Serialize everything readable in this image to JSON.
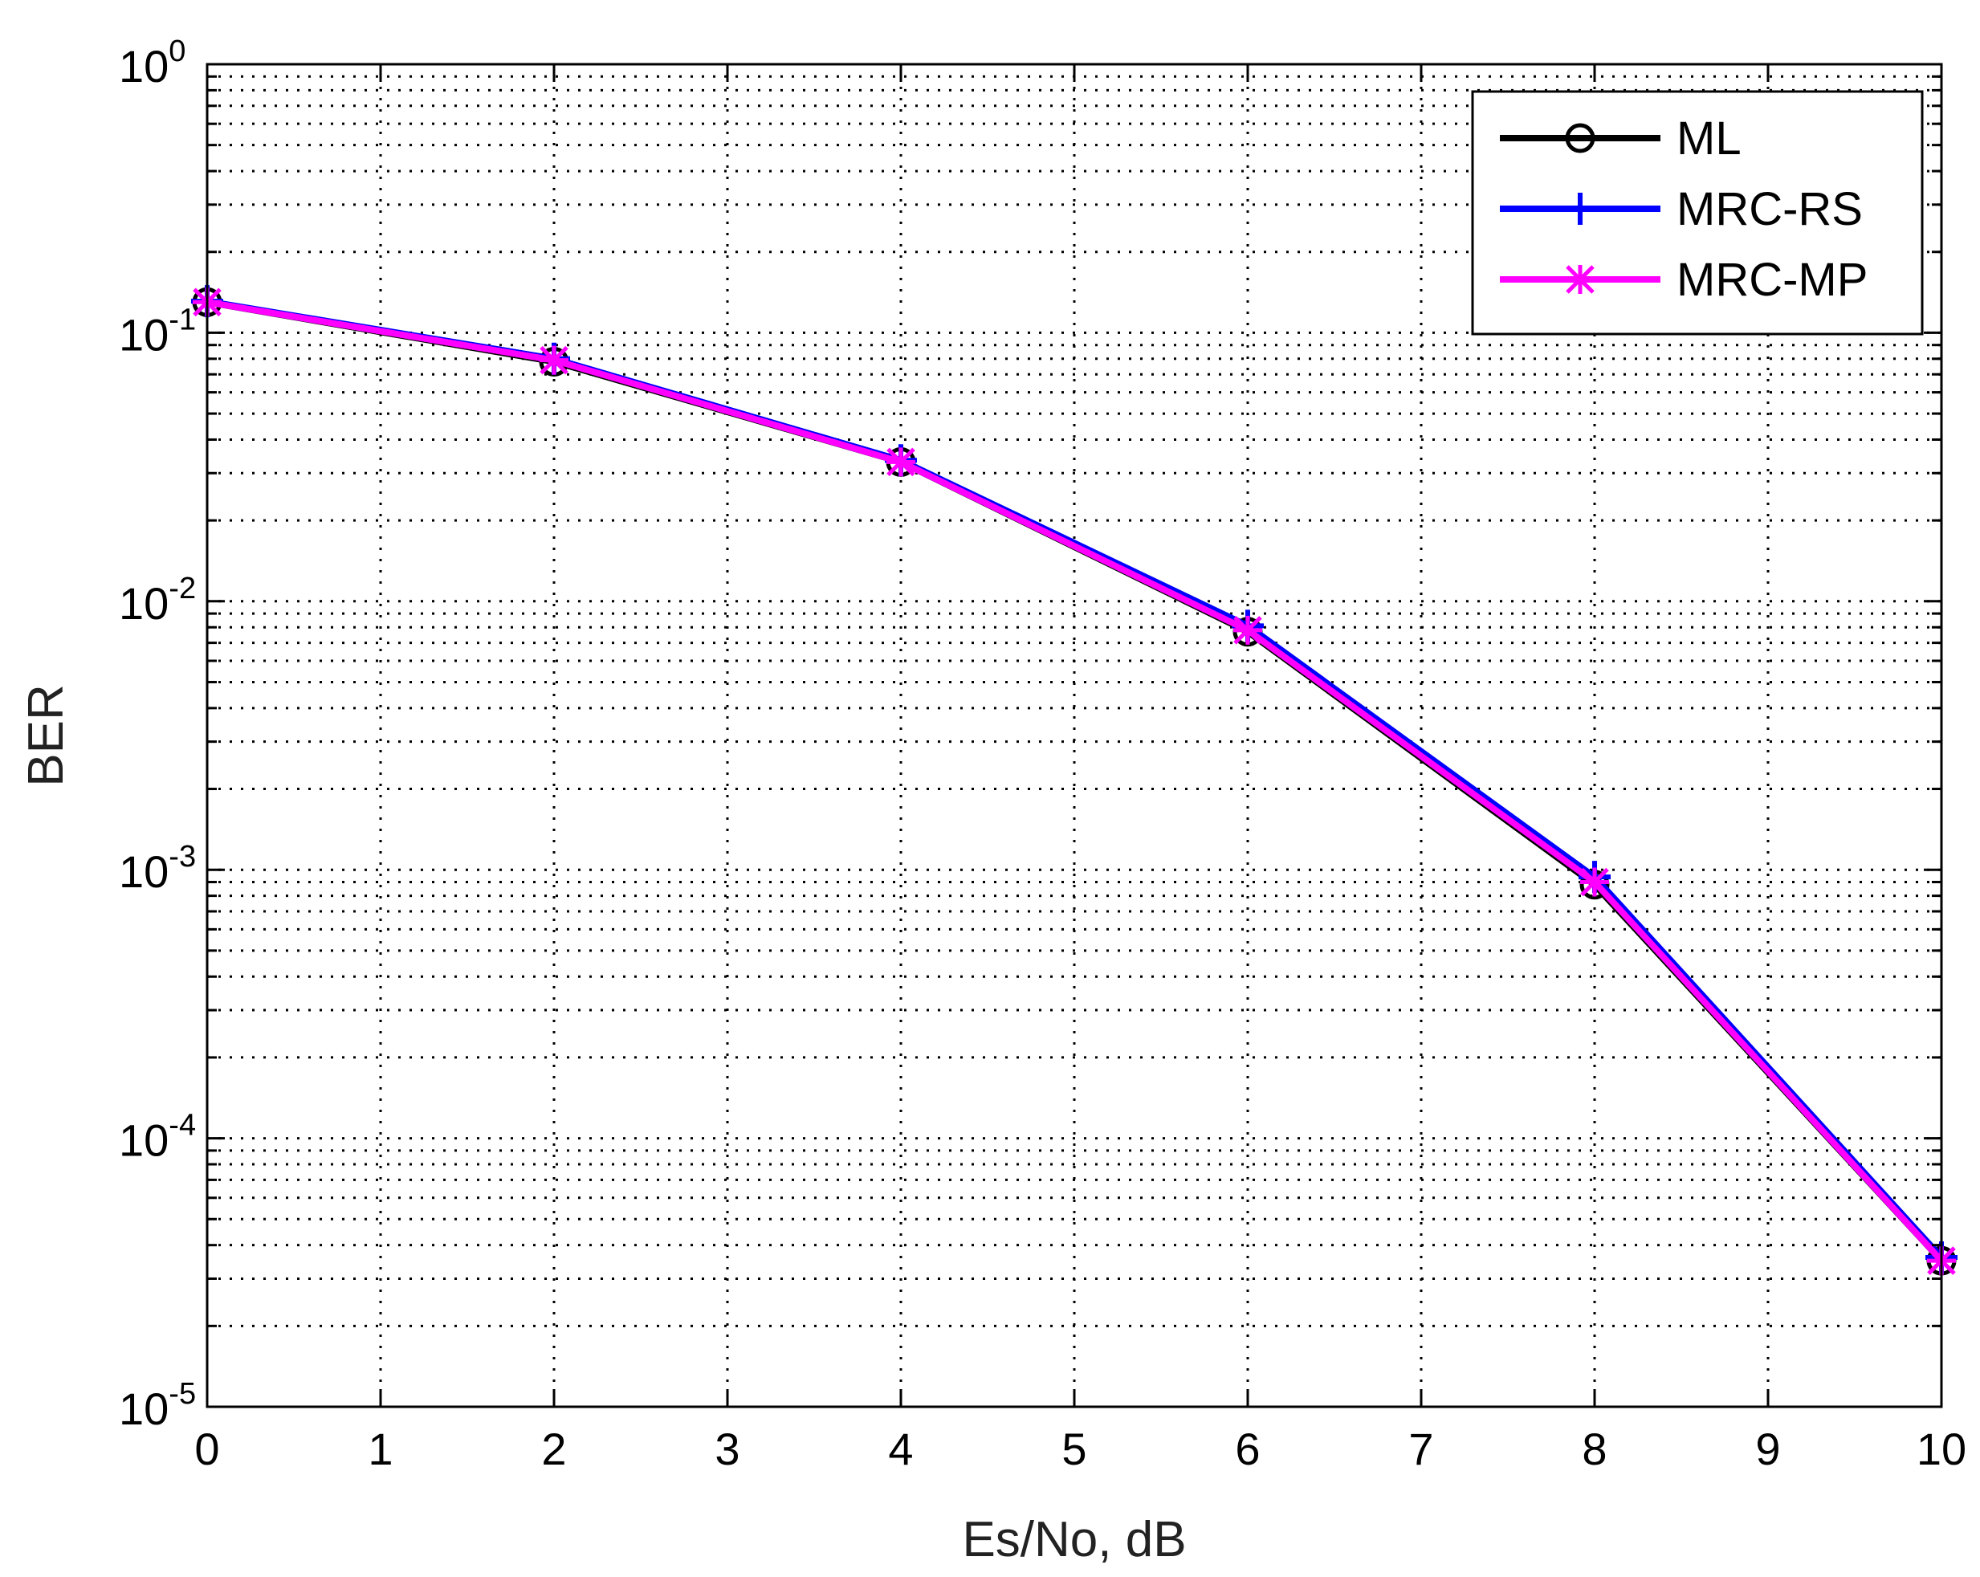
{
  "chart_data": {
    "type": "line",
    "title": "",
    "xlabel": "Es/No, dB",
    "ylabel": "BER",
    "xlim": [
      0,
      10
    ],
    "ylim": [
      1e-05,
      1
    ],
    "yscale": "log",
    "grid": true,
    "legend_position": "top-right",
    "x_ticks": [
      "0",
      "1",
      "2",
      "3",
      "4",
      "5",
      "6",
      "7",
      "8",
      "9",
      "10"
    ],
    "y_ticks": [
      {
        "base": "10",
        "exp": "0"
      },
      {
        "base": "10",
        "exp": "-1"
      },
      {
        "base": "10",
        "exp": "-2"
      },
      {
        "base": "10",
        "exp": "-3"
      },
      {
        "base": "10",
        "exp": "-4"
      },
      {
        "base": "10",
        "exp": "-5"
      }
    ],
    "series": [
      {
        "name": "ML",
        "color": "#000000",
        "marker": "circle",
        "x": [
          0,
          2,
          4,
          6,
          8,
          10
        ],
        "values": [
          0.13,
          0.078,
          0.033,
          0.0077,
          0.00088,
          3.5e-05
        ]
      },
      {
        "name": "MRC-RS",
        "color": "#0000ff",
        "marker": "plus",
        "x": [
          0,
          2,
          4,
          6,
          8,
          10
        ],
        "values": [
          0.131,
          0.08,
          0.0335,
          0.0081,
          0.00094,
          3.6e-05
        ]
      },
      {
        "name": "MRC-MP",
        "color": "#ff00ff",
        "marker": "star",
        "x": [
          0,
          2,
          4,
          6,
          8,
          10
        ],
        "values": [
          0.13,
          0.079,
          0.033,
          0.0078,
          0.0009,
          3.5e-05
        ]
      }
    ]
  }
}
